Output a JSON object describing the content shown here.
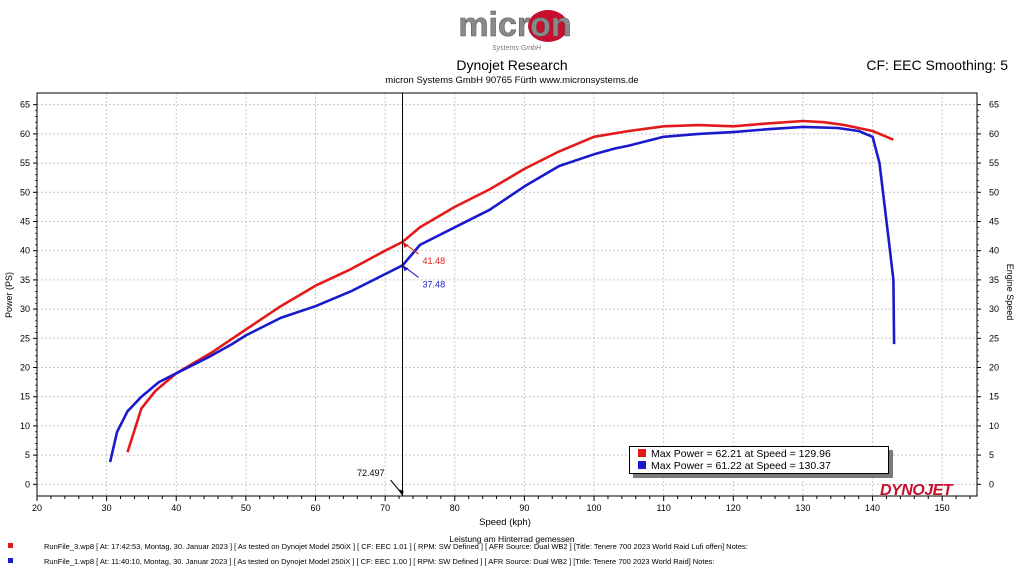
{
  "header": {
    "logo_text": "micron",
    "logo_subtext": "Systems GmbH",
    "title": "Dynojet Research",
    "subtitle": "micron Systems GmbH  90765 Fürth www.micronsystems.de",
    "cf_smoothing": "CF: EEC Smoothing: 5"
  },
  "chart_data": {
    "type": "line",
    "xlabel": "Speed (kph)",
    "ylabel": "Power (PS)",
    "y2label": "Engine Speed",
    "xlim": [
      20,
      155
    ],
    "ylim": [
      -2,
      67
    ],
    "xticks": [
      20,
      30,
      40,
      50,
      60,
      70,
      80,
      90,
      100,
      110,
      120,
      130,
      140,
      150
    ],
    "yticks": [
      0,
      5,
      10,
      15,
      20,
      25,
      30,
      35,
      40,
      45,
      50,
      55,
      60,
      65
    ],
    "series": [
      {
        "name": "RunFile_3.wp8",
        "color": "#e41a1a",
        "x": [
          33.0,
          35.0,
          37.0,
          40.0,
          45.0,
          50.0,
          55.0,
          60.0,
          65.0,
          70.0,
          72.5,
          75.0,
          80.0,
          85.0,
          90.0,
          95.0,
          100.0,
          105.0,
          110.0,
          115.0,
          120.0,
          125.0,
          130.0,
          133.0,
          136.0,
          140.0,
          143.0
        ],
        "y": [
          5.5,
          13.0,
          16.0,
          19.0,
          22.5,
          26.5,
          30.5,
          34.0,
          36.8,
          40.0,
          41.5,
          44.0,
          47.5,
          50.5,
          54.0,
          57.0,
          59.5,
          60.5,
          61.3,
          61.5,
          61.3,
          61.8,
          62.2,
          62.0,
          61.5,
          60.5,
          59.0
        ]
      },
      {
        "name": "RunFile_1.wp8",
        "color": "#1a1acc",
        "x": [
          30.5,
          31.5,
          33.0,
          35.0,
          37.5,
          40.0,
          45.0,
          48.0,
          50.0,
          55.0,
          60.0,
          65.0,
          70.0,
          72.5,
          75.0,
          80.0,
          85.0,
          90.0,
          95.0,
          100.0,
          103.0,
          105.0,
          110.0,
          115.0,
          120.0,
          125.0,
          130.0,
          135.0,
          138.0,
          140.0,
          141.0,
          141.5,
          142.0,
          142.5,
          143.0,
          143.1
        ],
        "y": [
          3.8,
          9.0,
          12.5,
          15.0,
          17.5,
          19.0,
          22.0,
          24.0,
          25.5,
          28.5,
          30.5,
          33.0,
          36.0,
          37.5,
          41.0,
          44.0,
          47.0,
          51.0,
          54.5,
          56.5,
          57.5,
          58.0,
          59.5,
          60.0,
          60.3,
          60.8,
          61.2,
          61.0,
          60.5,
          59.5,
          55.0,
          50.0,
          45.0,
          40.0,
          35.0,
          24.0
        ]
      }
    ],
    "cursor": {
      "x": 72.497,
      "label": "72.497"
    },
    "annotations": [
      {
        "series": 0,
        "x": 72.5,
        "y": 41.48,
        "text": "41.48"
      },
      {
        "series": 1,
        "x": 72.5,
        "y": 37.48,
        "text": "37.48"
      }
    ],
    "legend": {
      "position": "bottom-right",
      "entries": [
        {
          "text": "Max Power = 62.21 at Speed = 129.96",
          "color": "#e41a1a"
        },
        {
          "text": "Max Power = 61.22 at Speed = 130.37",
          "color": "#1a1acc"
        }
      ]
    }
  },
  "footer": {
    "note": "Leistung am Hinterrad gemessen",
    "brand": "DYNOJET",
    "runs": [
      {
        "text": "RunFile_3.wp8  [  At:  17:42:53,  Montag,  30.  Januar  2023  ]  [  As  tested  on  Dynojet  Model  250iX  ]  [  CF:  EEC  1.01  ]  [  RPM:  SW  Defined  ]  [  AFR  Source:  Dual  WB2  ]  [Title:  Tenere  700  2023  World  Raid  Lufi  offen]   Notes:",
        "color": "#e41a1a"
      },
      {
        "text": "RunFile_1.wp8  [  At:  11:40:10,  Montag,  30.  Januar  2023  ]  [  As  tested  on  Dynojet  Model  250iX  ]  [  CF:  EEC  1.00  ]  [  RPM:  SW  Defined  ]  [  AFR  Source:  Dual  WB2  ]  [Title:  Tenere  700  2023  World  Raid]   Notes:",
        "color": "#1a1acc"
      }
    ]
  }
}
